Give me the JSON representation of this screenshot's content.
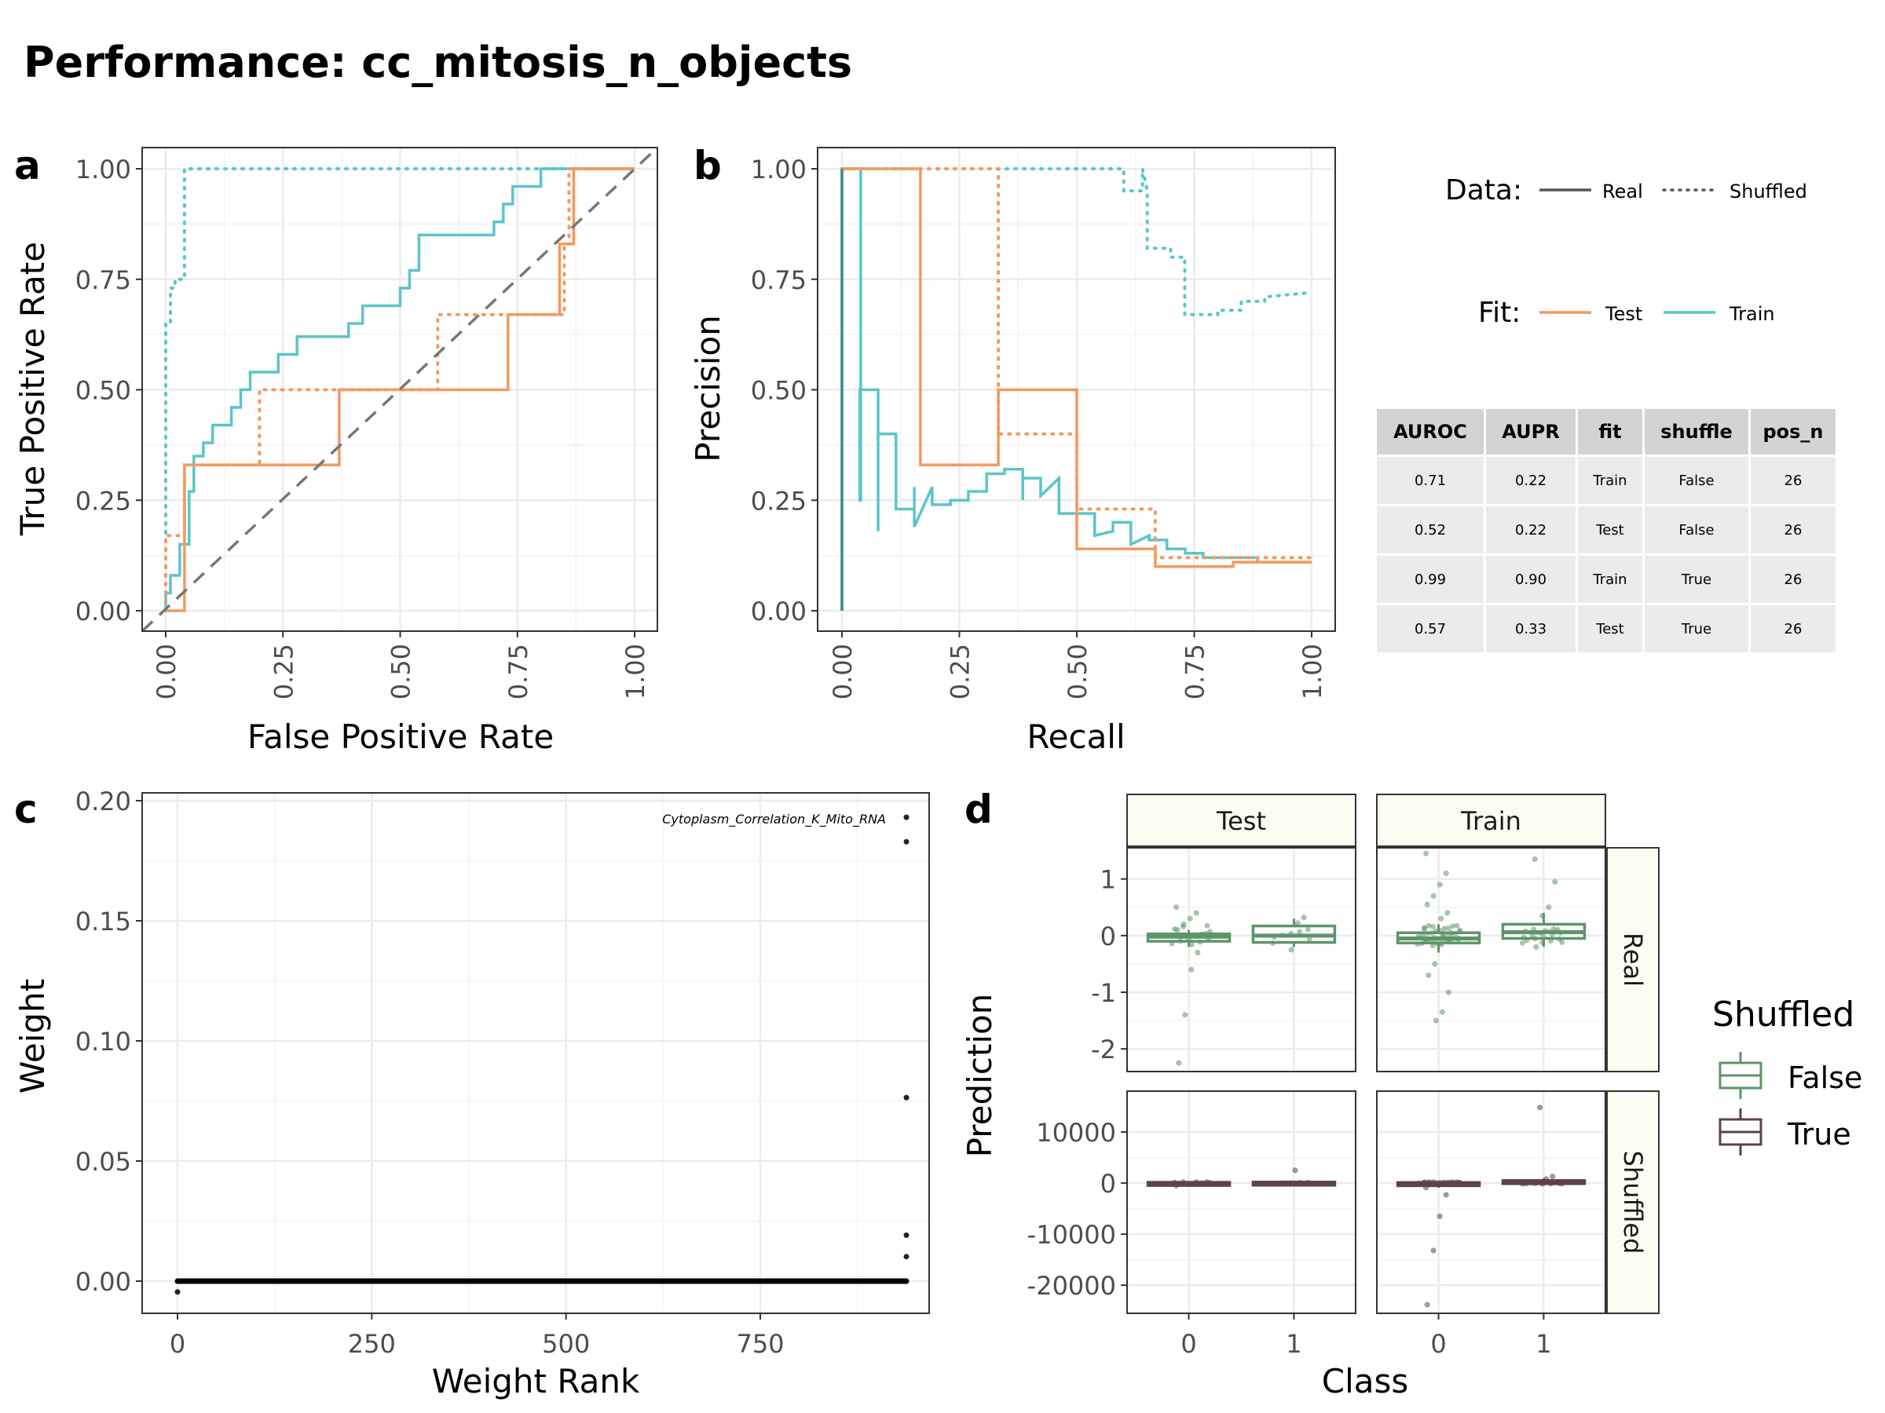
{
  "title": "Performance: cc_mitosis_n_objects",
  "colors": {
    "test": "#F4995E",
    "train": "#5BC5C9",
    "shuffled_false": "#5E9469",
    "shuffled_true": "#5C4150",
    "black": "#000000"
  },
  "panels": {
    "a": {
      "tag": "a",
      "xlabel": "False Positive Rate",
      "ylabel": "True Positive Rate"
    },
    "b": {
      "tag": "b",
      "xlabel": "Recall",
      "ylabel": "Precision"
    },
    "c": {
      "tag": "c",
      "xlabel": "Weight Rank",
      "ylabel": "Weight",
      "annotation": "Cytoplasm_Correlation_K_Mito_RNA"
    },
    "d": {
      "tag": "d",
      "xlabel": "Class",
      "ylabel": "Prediction",
      "facet_cols": [
        "Test",
        "Train"
      ],
      "facet_rows": [
        "Real",
        "Shuffled"
      ]
    }
  },
  "legend": {
    "data_title": "Data:",
    "data_items": [
      "Real",
      "Shuffled"
    ],
    "fit_title": "Fit:",
    "fit_items": [
      "Test",
      "Train"
    ],
    "shuffled_title": "Shuffled",
    "shuffled_items": [
      "False",
      "True"
    ]
  },
  "metrics_table": {
    "headers": [
      "AUROC",
      "AUPR",
      "fit",
      "shuffle",
      "pos_n"
    ],
    "rows": [
      [
        "0.71",
        "0.22",
        "Train",
        "False",
        "26"
      ],
      [
        "0.52",
        "0.22",
        "Test",
        "False",
        "26"
      ],
      [
        "0.99",
        "0.90",
        "Train",
        "True",
        "26"
      ],
      [
        "0.57",
        "0.33",
        "Test",
        "True",
        "26"
      ]
    ]
  },
  "chart_data": [
    {
      "panel": "a",
      "type": "line",
      "xlabel": "False Positive Rate",
      "ylabel": "True Positive Rate",
      "xlim": [
        0,
        1
      ],
      "ylim": [
        0,
        1
      ],
      "xticks": [
        "0.00",
        "0.25",
        "0.50",
        "0.75",
        "1.00"
      ],
      "yticks": [
        "0.00",
        "0.25",
        "0.50",
        "0.75",
        "1.00"
      ],
      "series": [
        {
          "fit": "Train",
          "data": "Real",
          "x": [
            0,
            0,
            0.01,
            0.01,
            0.03,
            0.03,
            0.05,
            0.05,
            0.06,
            0.06,
            0.08,
            0.08,
            0.1,
            0.1,
            0.14,
            0.14,
            0.16,
            0.16,
            0.18,
            0.18,
            0.24,
            0.24,
            0.28,
            0.28,
            0.39,
            0.39,
            0.42,
            0.42,
            0.5,
            0.5,
            0.52,
            0.52,
            0.54,
            0.54,
            0.7,
            0.7,
            0.72,
            0.72,
            0.74,
            0.74,
            0.76,
            0.76,
            0.78,
            0.78,
            0.8,
            0.8,
            0.82,
            0.82,
            1
          ],
          "y": [
            0,
            0.04,
            0.04,
            0.08,
            0.08,
            0.15,
            0.15,
            0.27,
            0.27,
            0.35,
            0.35,
            0.38,
            0.38,
            0.42,
            0.42,
            0.46,
            0.46,
            0.5,
            0.5,
            0.54,
            0.54,
            0.58,
            0.58,
            0.62,
            0.62,
            0.65,
            0.65,
            0.69,
            0.69,
            0.73,
            0.73,
            0.77,
            0.77,
            0.85,
            0.85,
            0.88,
            0.88,
            0.92,
            0.92,
            0.96,
            0.96,
            0.96,
            0.96,
            0.96,
            0.96,
            1,
            1,
            1,
            1
          ]
        },
        {
          "fit": "Test",
          "data": "Real",
          "x": [
            0,
            0.04,
            0.04,
            0.37,
            0.37,
            0.73,
            0.73,
            0.84,
            0.84,
            0.87,
            0.87,
            1
          ],
          "y": [
            0,
            0,
            0.33,
            0.33,
            0.5,
            0.5,
            0.67,
            0.67,
            0.83,
            0.83,
            1,
            1
          ]
        },
        {
          "fit": "Train",
          "data": "Shuffled",
          "x": [
            0,
            0,
            0.01,
            0.01,
            0.02,
            0.02,
            0.04,
            0.04,
            1
          ],
          "y": [
            0,
            0.65,
            0.65,
            0.73,
            0.73,
            0.75,
            0.75,
            1,
            1
          ]
        },
        {
          "fit": "Test",
          "data": "Shuffled",
          "x": [
            0,
            0,
            0.02,
            0.02,
            0.04,
            0.04,
            0.2,
            0.2,
            0.58,
            0.58,
            0.85,
            0.85,
            0.86,
            0.86,
            1
          ],
          "y": [
            0,
            0.17,
            0.17,
            0.17,
            0.17,
            0.33,
            0.33,
            0.5,
            0.5,
            0.67,
            0.67,
            0.83,
            0.83,
            1,
            1
          ]
        },
        {
          "fit": "Reference",
          "data": "Diagonal",
          "x": [
            0,
            1
          ],
          "y": [
            0,
            1
          ]
        }
      ]
    },
    {
      "panel": "b",
      "type": "line",
      "xlabel": "Recall",
      "ylabel": "Precision",
      "xlim": [
        0,
        1
      ],
      "ylim": [
        0,
        1
      ],
      "xticks": [
        "0.00",
        "0.25",
        "0.50",
        "0.75",
        "1.00"
      ],
      "yticks": [
        "0.00",
        "0.25",
        "0.50",
        "0.75",
        "1.00"
      ],
      "series": [
        {
          "fit": "Train",
          "data": "Real",
          "x": [
            0,
            0,
            0.04,
            0.04,
            0.038,
            0.038,
            0.077,
            0.077,
            0.077,
            0.077,
            0.115,
            0.115,
            0.115,
            0.154,
            0.154,
            0.154,
            0.192,
            0.192,
            0.231,
            0.231,
            0.269,
            0.269,
            0.308,
            0.308,
            0.346,
            0.346,
            0.385,
            0.385,
            0.385,
            0.423,
            0.423,
            0.462,
            0.462,
            0.5,
            0.5,
            0.538,
            0.538,
            0.577,
            0.577,
            0.615,
            0.615,
            0.654,
            0.654,
            0.692,
            0.692,
            0.731,
            0.731,
            0.769,
            0.769,
            0.808,
            0.808,
            0.846,
            0.846,
            0.885,
            0.885,
            0.923,
            0.923,
            1
          ],
          "y": [
            0,
            1,
            1,
            0.25,
            0.25,
            0.5,
            0.5,
            0.18,
            0.18,
            0.4,
            0.4,
            0.23,
            0.23,
            0.23,
            0.28,
            0.19,
            0.28,
            0.24,
            0.24,
            0.25,
            0.25,
            0.27,
            0.27,
            0.31,
            0.31,
            0.32,
            0.32,
            0.25,
            0.3,
            0.3,
            0.26,
            0.3,
            0.22,
            0.22,
            0.22,
            0.22,
            0.17,
            0.18,
            0.2,
            0.2,
            0.15,
            0.17,
            0.16,
            0.16,
            0.14,
            0.14,
            0.13,
            0.13,
            0.12,
            0.12,
            0.12,
            0.12,
            0.12,
            0.12,
            0.11,
            0.11,
            0.11,
            0.11
          ]
        },
        {
          "fit": "Test",
          "data": "Real",
          "x": [
            0,
            0.167,
            0.167,
            0.333,
            0.333,
            0.5,
            0.5,
            0.667,
            0.667,
            0.833,
            0.833,
            1
          ],
          "y": [
            1,
            1,
            0.33,
            0.33,
            0.5,
            0.5,
            0.14,
            0.14,
            0.1,
            0.1,
            0.11,
            0.11
          ]
        },
        {
          "fit": "Train",
          "data": "Shuffled",
          "x": [
            0,
            0.6,
            0.6,
            0.64,
            0.64,
            0.65,
            0.65,
            0.7,
            0.7,
            0.73,
            0.73,
            0.77,
            0.77,
            0.8,
            0.8,
            0.85,
            0.85,
            0.9,
            0.9,
            1
          ],
          "y": [
            1,
            1,
            0.95,
            0.95,
            1,
            0.95,
            0.82,
            0.82,
            0.8,
            0.8,
            0.67,
            0.67,
            0.67,
            0.67,
            0.68,
            0.68,
            0.7,
            0.7,
            0.71,
            0.72
          ]
        },
        {
          "fit": "Test",
          "data": "Shuffled",
          "x": [
            0,
            0.333,
            0.333,
            0.5,
            0.5,
            0.667,
            0.667,
            0.833,
            0.833,
            1
          ],
          "y": [
            1,
            1,
            0.4,
            0.4,
            0.23,
            0.23,
            0.12,
            0.12,
            0.12,
            0.12
          ]
        }
      ]
    },
    {
      "panel": "c",
      "type": "scatter",
      "xlabel": "Weight Rank",
      "ylabel": "Weight",
      "xlim": [
        0,
        940
      ],
      "ylim": [
        -0.005,
        0.2
      ],
      "xticks": [
        "0",
        "250",
        "500",
        "750"
      ],
      "yticks": [
        "0.00",
        "0.05",
        "0.10",
        "0.15",
        "0.20"
      ],
      "zero_run": {
        "from": 0,
        "to": 938,
        "value": 0
      },
      "points": [
        [
          0,
          -0.0045
        ],
        [
          938,
          0.0102
        ],
        [
          938,
          0.0191
        ],
        [
          938,
          0.0764
        ],
        [
          938,
          0.1829
        ],
        [
          938,
          0.1931
        ]
      ],
      "labeled_point": {
        "x": 938,
        "y": 0.1931,
        "label": "Cytoplasm_Correlation_K_Mito_RNA"
      }
    },
    {
      "panel": "d",
      "type": "box",
      "xlabel": "Class",
      "ylabel": "Prediction",
      "categories": [
        "0",
        "1"
      ],
      "row_yticks": {
        "Real": [
          "1",
          "0",
          "-1",
          "-2"
        ],
        "Shuffled": [
          "10000",
          "0",
          "-10000",
          "-20000"
        ]
      },
      "row_ylim": {
        "Real": [
          -2.4,
          1.55
        ],
        "Shuffled": [
          -25500,
          18000
        ]
      },
      "facets": [
        {
          "col": "Test",
          "row": "Real",
          "shuffled": "False",
          "boxes": [
            {
              "class": "0",
              "q1": -0.1,
              "median": -0.02,
              "q3": 0.03,
              "lo": -0.2,
              "hi": 0.1
            },
            {
              "class": "1",
              "q1": -0.12,
              "median": 0.0,
              "q3": 0.17,
              "lo": -0.2,
              "hi": 0.3
            }
          ],
          "points": [
            [
              0,
              0.5
            ],
            [
              0,
              0.4
            ],
            [
              0,
              0.3
            ],
            [
              0,
              0.2
            ],
            [
              0,
              0.1
            ],
            [
              0,
              -0.3
            ],
            [
              0,
              -0.6
            ],
            [
              0,
              -1.4
            ],
            [
              0,
              -2.25
            ],
            [
              1,
              0.32
            ],
            [
              1,
              0.22
            ],
            [
              1,
              -0.25
            ]
          ]
        },
        {
          "col": "Train",
          "row": "Real",
          "shuffled": "False",
          "boxes": [
            {
              "class": "0",
              "q1": -0.13,
              "median": -0.05,
              "q3": 0.05,
              "lo": -0.3,
              "hi": 0.2
            },
            {
              "class": "1",
              "q1": -0.05,
              "median": 0.06,
              "q3": 0.2,
              "lo": -0.2,
              "hi": 0.4
            }
          ],
          "points": [
            [
              0,
              1.45
            ],
            [
              0,
              1.1
            ],
            [
              0,
              0.9
            ],
            [
              0,
              0.7
            ],
            [
              0,
              0.55
            ],
            [
              0,
              0.4
            ],
            [
              0,
              0.3
            ],
            [
              0,
              -0.5
            ],
            [
              0,
              -0.7
            ],
            [
              0,
              -1.0
            ],
            [
              0,
              -1.35
            ],
            [
              0,
              -1.5
            ],
            [
              1,
              1.35
            ],
            [
              1,
              0.95
            ],
            [
              1,
              0.5
            ],
            [
              1,
              0.35
            ],
            [
              1,
              -0.2
            ]
          ]
        },
        {
          "col": "Test",
          "row": "Shuffled",
          "shuffled": "True",
          "boxes": [
            {
              "class": "0",
              "q1": -250,
              "median": 0,
              "q3": 150,
              "lo": -700,
              "hi": 300
            },
            {
              "class": "1",
              "q1": -200,
              "median": 0,
              "q3": 200,
              "lo": -300,
              "hi": 300
            }
          ],
          "points": [
            [
              0,
              -500
            ],
            [
              0,
              200
            ],
            [
              1,
              2500
            ]
          ]
        },
        {
          "col": "Train",
          "row": "Shuffled",
          "shuffled": "True",
          "boxes": [
            {
              "class": "0",
              "q1": -300,
              "median": -50,
              "q3": 100,
              "lo": -900,
              "hi": 300
            },
            {
              "class": "1",
              "q1": 0,
              "median": 200,
              "q3": 500,
              "lo": -100,
              "hi": 900
            }
          ],
          "points": [
            [
              0,
              -900
            ],
            [
              0,
              -2300
            ],
            [
              0,
              -6500
            ],
            [
              0,
              -13200
            ],
            [
              0,
              -23800
            ],
            [
              1,
              1300
            ],
            [
              1,
              800
            ],
            [
              1,
              14800
            ]
          ]
        }
      ]
    }
  ]
}
